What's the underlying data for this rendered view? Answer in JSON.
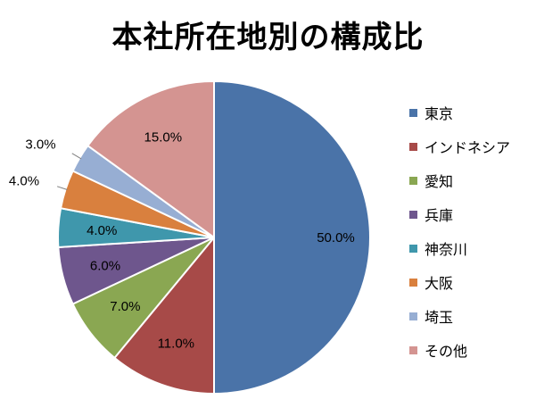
{
  "chart_data": {
    "type": "pie",
    "title": "本社所在地別の構成比",
    "start_angle": "12 o'clock",
    "direction": "clockwise",
    "legend_position": "right",
    "slices": [
      {
        "label": "東京",
        "value": 50.0,
        "value_label": "50.0%",
        "color": "#4A73A8",
        "label_placement": "inside"
      },
      {
        "label": "インドネシア",
        "value": 11.0,
        "value_label": "11.0%",
        "color": "#A74A48",
        "label_placement": "inside"
      },
      {
        "label": "愛知",
        "value": 7.0,
        "value_label": "7.0%",
        "color": "#8AA752",
        "label_placement": "inside"
      },
      {
        "label": "兵庫",
        "value": 6.0,
        "value_label": "6.0%",
        "color": "#6E568D",
        "label_placement": "inside"
      },
      {
        "label": "神奈川",
        "value": 4.0,
        "value_label": "4.0%",
        "color": "#3F97AC",
        "label_placement": "inside"
      },
      {
        "label": "大阪",
        "value": 4.0,
        "value_label": "4.0%",
        "color": "#D9803E",
        "label_placement": "outside"
      },
      {
        "label": "埼玉",
        "value": 3.0,
        "value_label": "3.0%",
        "color": "#97AED3",
        "label_placement": "outside"
      },
      {
        "label": "その他",
        "value": 15.0,
        "value_label": "15.0%",
        "color": "#D49491",
        "label_placement": "inside"
      }
    ]
  }
}
